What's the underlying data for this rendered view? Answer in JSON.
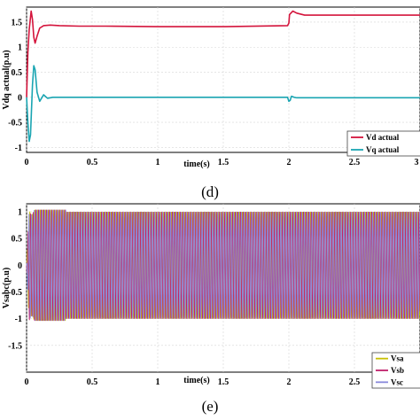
{
  "chart_data": [
    {
      "type": "line",
      "panel_label": "(d)",
      "xlabel": "time(s)",
      "ylabel": "Vdq actual(p.u)",
      "xlim": [
        0,
        3
      ],
      "ylim": [
        -1.1,
        1.8
      ],
      "xticks": [
        "0",
        "0.5",
        "1",
        "1.5",
        "2",
        "2.5",
        "3"
      ],
      "yticks": [
        "-1",
        "-0.5",
        "0",
        "0.5",
        "1",
        "1.5"
      ],
      "grid": true,
      "legend_position": "bottom-right",
      "series": [
        {
          "name": "Vd actual",
          "color": "#d4143c",
          "x": [
            0,
            0.01,
            0.02,
            0.03,
            0.035,
            0.045,
            0.055,
            0.065,
            0.08,
            0.1,
            0.13,
            0.18,
            0.25,
            0.4,
            0.6,
            1.0,
            1.5,
            1.99,
            2.0,
            2.005,
            2.03,
            2.06,
            2.12,
            2.3,
            2.6,
            3.0
          ],
          "y": [
            0,
            0.9,
            1.35,
            1.6,
            1.72,
            1.55,
            1.2,
            1.08,
            1.22,
            1.38,
            1.43,
            1.44,
            1.43,
            1.42,
            1.42,
            1.41,
            1.41,
            1.43,
            1.48,
            1.65,
            1.72,
            1.68,
            1.64,
            1.64,
            1.64,
            1.64
          ]
        },
        {
          "name": "Vq actual",
          "color": "#1aa5b2",
          "x": [
            0,
            0.01,
            0.02,
            0.03,
            0.045,
            0.055,
            0.065,
            0.08,
            0.1,
            0.13,
            0.16,
            0.2,
            0.3,
            0.6,
            1.0,
            1.5,
            1.99,
            2.0,
            2.01,
            2.02,
            2.04,
            2.06,
            2.3,
            3.0
          ],
          "y": [
            0,
            -0.5,
            -0.88,
            -0.75,
            0.25,
            0.63,
            0.55,
            0.1,
            -0.08,
            0.05,
            -0.02,
            0.0,
            0.0,
            0.0,
            0.0,
            0.0,
            0.0,
            -0.08,
            -0.06,
            0.02,
            0.0,
            -0.01,
            -0.01,
            -0.01
          ]
        }
      ]
    },
    {
      "type": "line",
      "panel_label": "(e)",
      "xlabel": "time(s)",
      "ylabel": "Vsabc(p.u)",
      "xlim": [
        0,
        3
      ],
      "ylim": [
        -2.0,
        1.15
      ],
      "xticks": [
        "0",
        "0.5",
        "1",
        "1.5",
        "2",
        "2.5",
        "3"
      ],
      "yticks": [
        "-1.5",
        "-1",
        "-0.5",
        "0",
        "0.5",
        "1"
      ],
      "grid": true,
      "legend_position": "bottom-right",
      "frequency_hz": 50,
      "amplitude": 1.0,
      "series": [
        {
          "name": "Vsa",
          "color": "#c8c000",
          "phase_deg": 0
        },
        {
          "name": "Vsb",
          "color": "#c0206a",
          "phase_deg": -120
        },
        {
          "name": "Vsc",
          "color": "#8a8adc",
          "phase_deg": 120
        }
      ]
    }
  ]
}
